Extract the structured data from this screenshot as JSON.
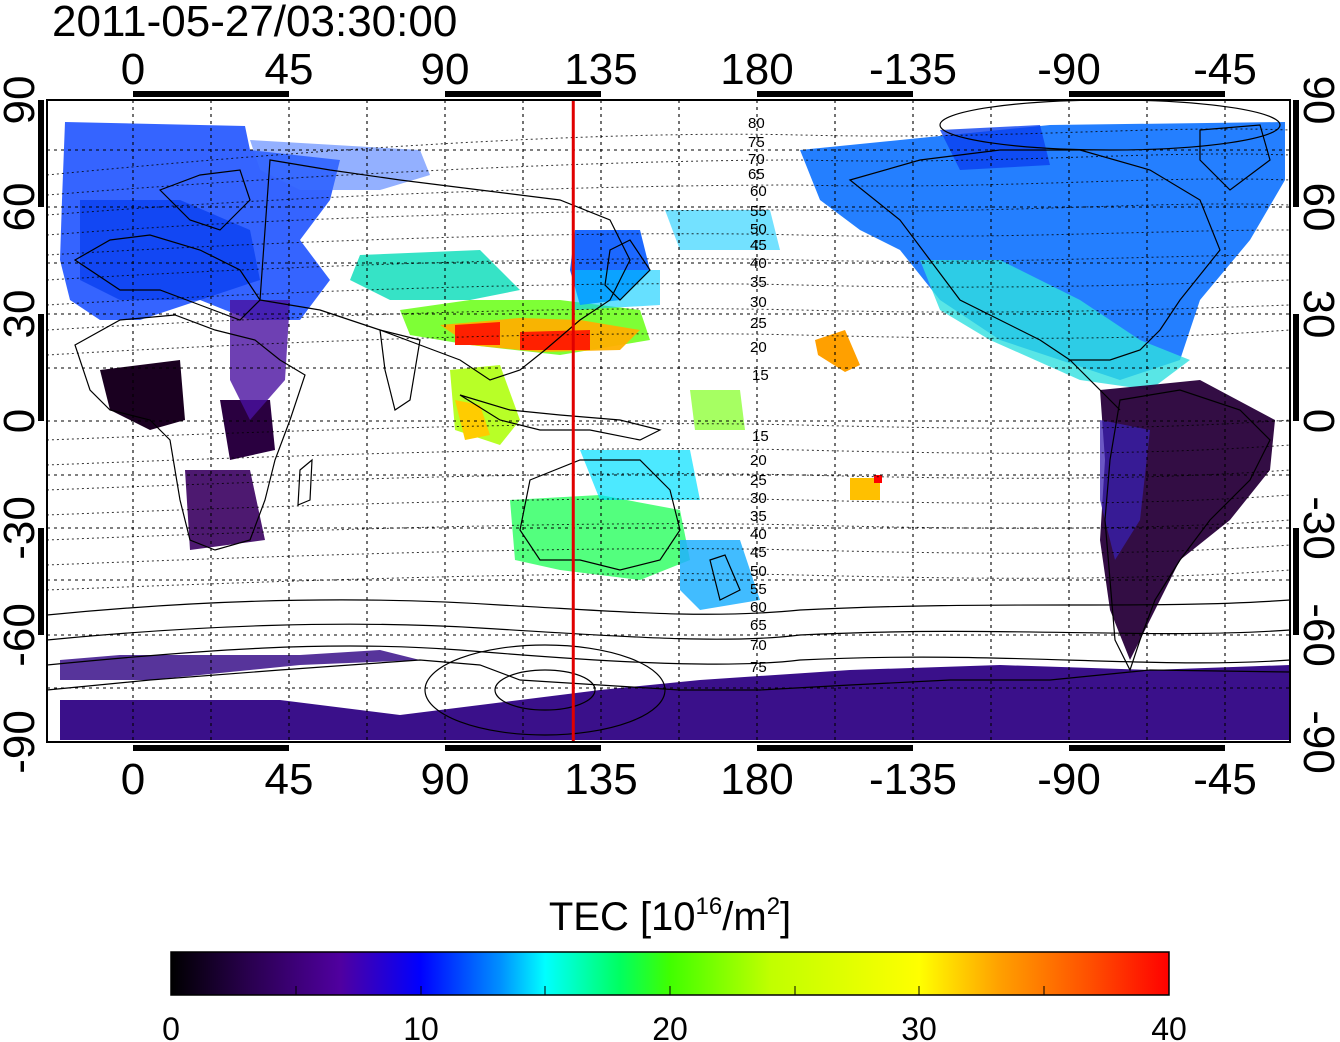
{
  "timestamp": "2011-05-27/03:30:00",
  "map": {
    "top_ticks": [
      "0",
      "45",
      "90",
      "135",
      "180",
      "-135",
      "-90",
      "-45"
    ],
    "bottom_ticks": [
      "0",
      "45",
      "90",
      "135",
      "180",
      "-135",
      "-90",
      "-45"
    ],
    "left_ticks": [
      "90",
      "60",
      "30",
      "0",
      "-30",
      "-60",
      "-90"
    ],
    "right_ticks": [
      "90",
      "60",
      "30",
      "0",
      "-30",
      "-60",
      "-90"
    ],
    "geomag_lat_labels_north": [
      "80",
      "75",
      "70",
      "65",
      "60",
      "55",
      "50",
      "45",
      "40",
      "35",
      "30",
      "25",
      "20",
      "15"
    ],
    "geomag_lat_labels_south": [
      "15",
      "20",
      "25",
      "30",
      "35",
      "40",
      "45",
      "50",
      "55",
      "60",
      "65",
      "70",
      "75"
    ],
    "marker_longitude": 127,
    "marker_color": "#e00000"
  },
  "colorbar": {
    "title_prefix": "TEC  [10",
    "title_sup1": "16",
    "title_mid": "/m",
    "title_sup2": "2",
    "title_suffix": "]",
    "ticks": [
      "0",
      "10",
      "20",
      "30",
      "40"
    ],
    "min": 0,
    "max": 40,
    "stops": [
      "#000000",
      "#2a0050",
      "#5000a0",
      "#0000ff",
      "#0090ff",
      "#00ffff",
      "#00ff60",
      "#40ff00",
      "#c0ff00",
      "#ffff00",
      "#ffa000",
      "#ff5000",
      "#ff0000"
    ]
  }
}
